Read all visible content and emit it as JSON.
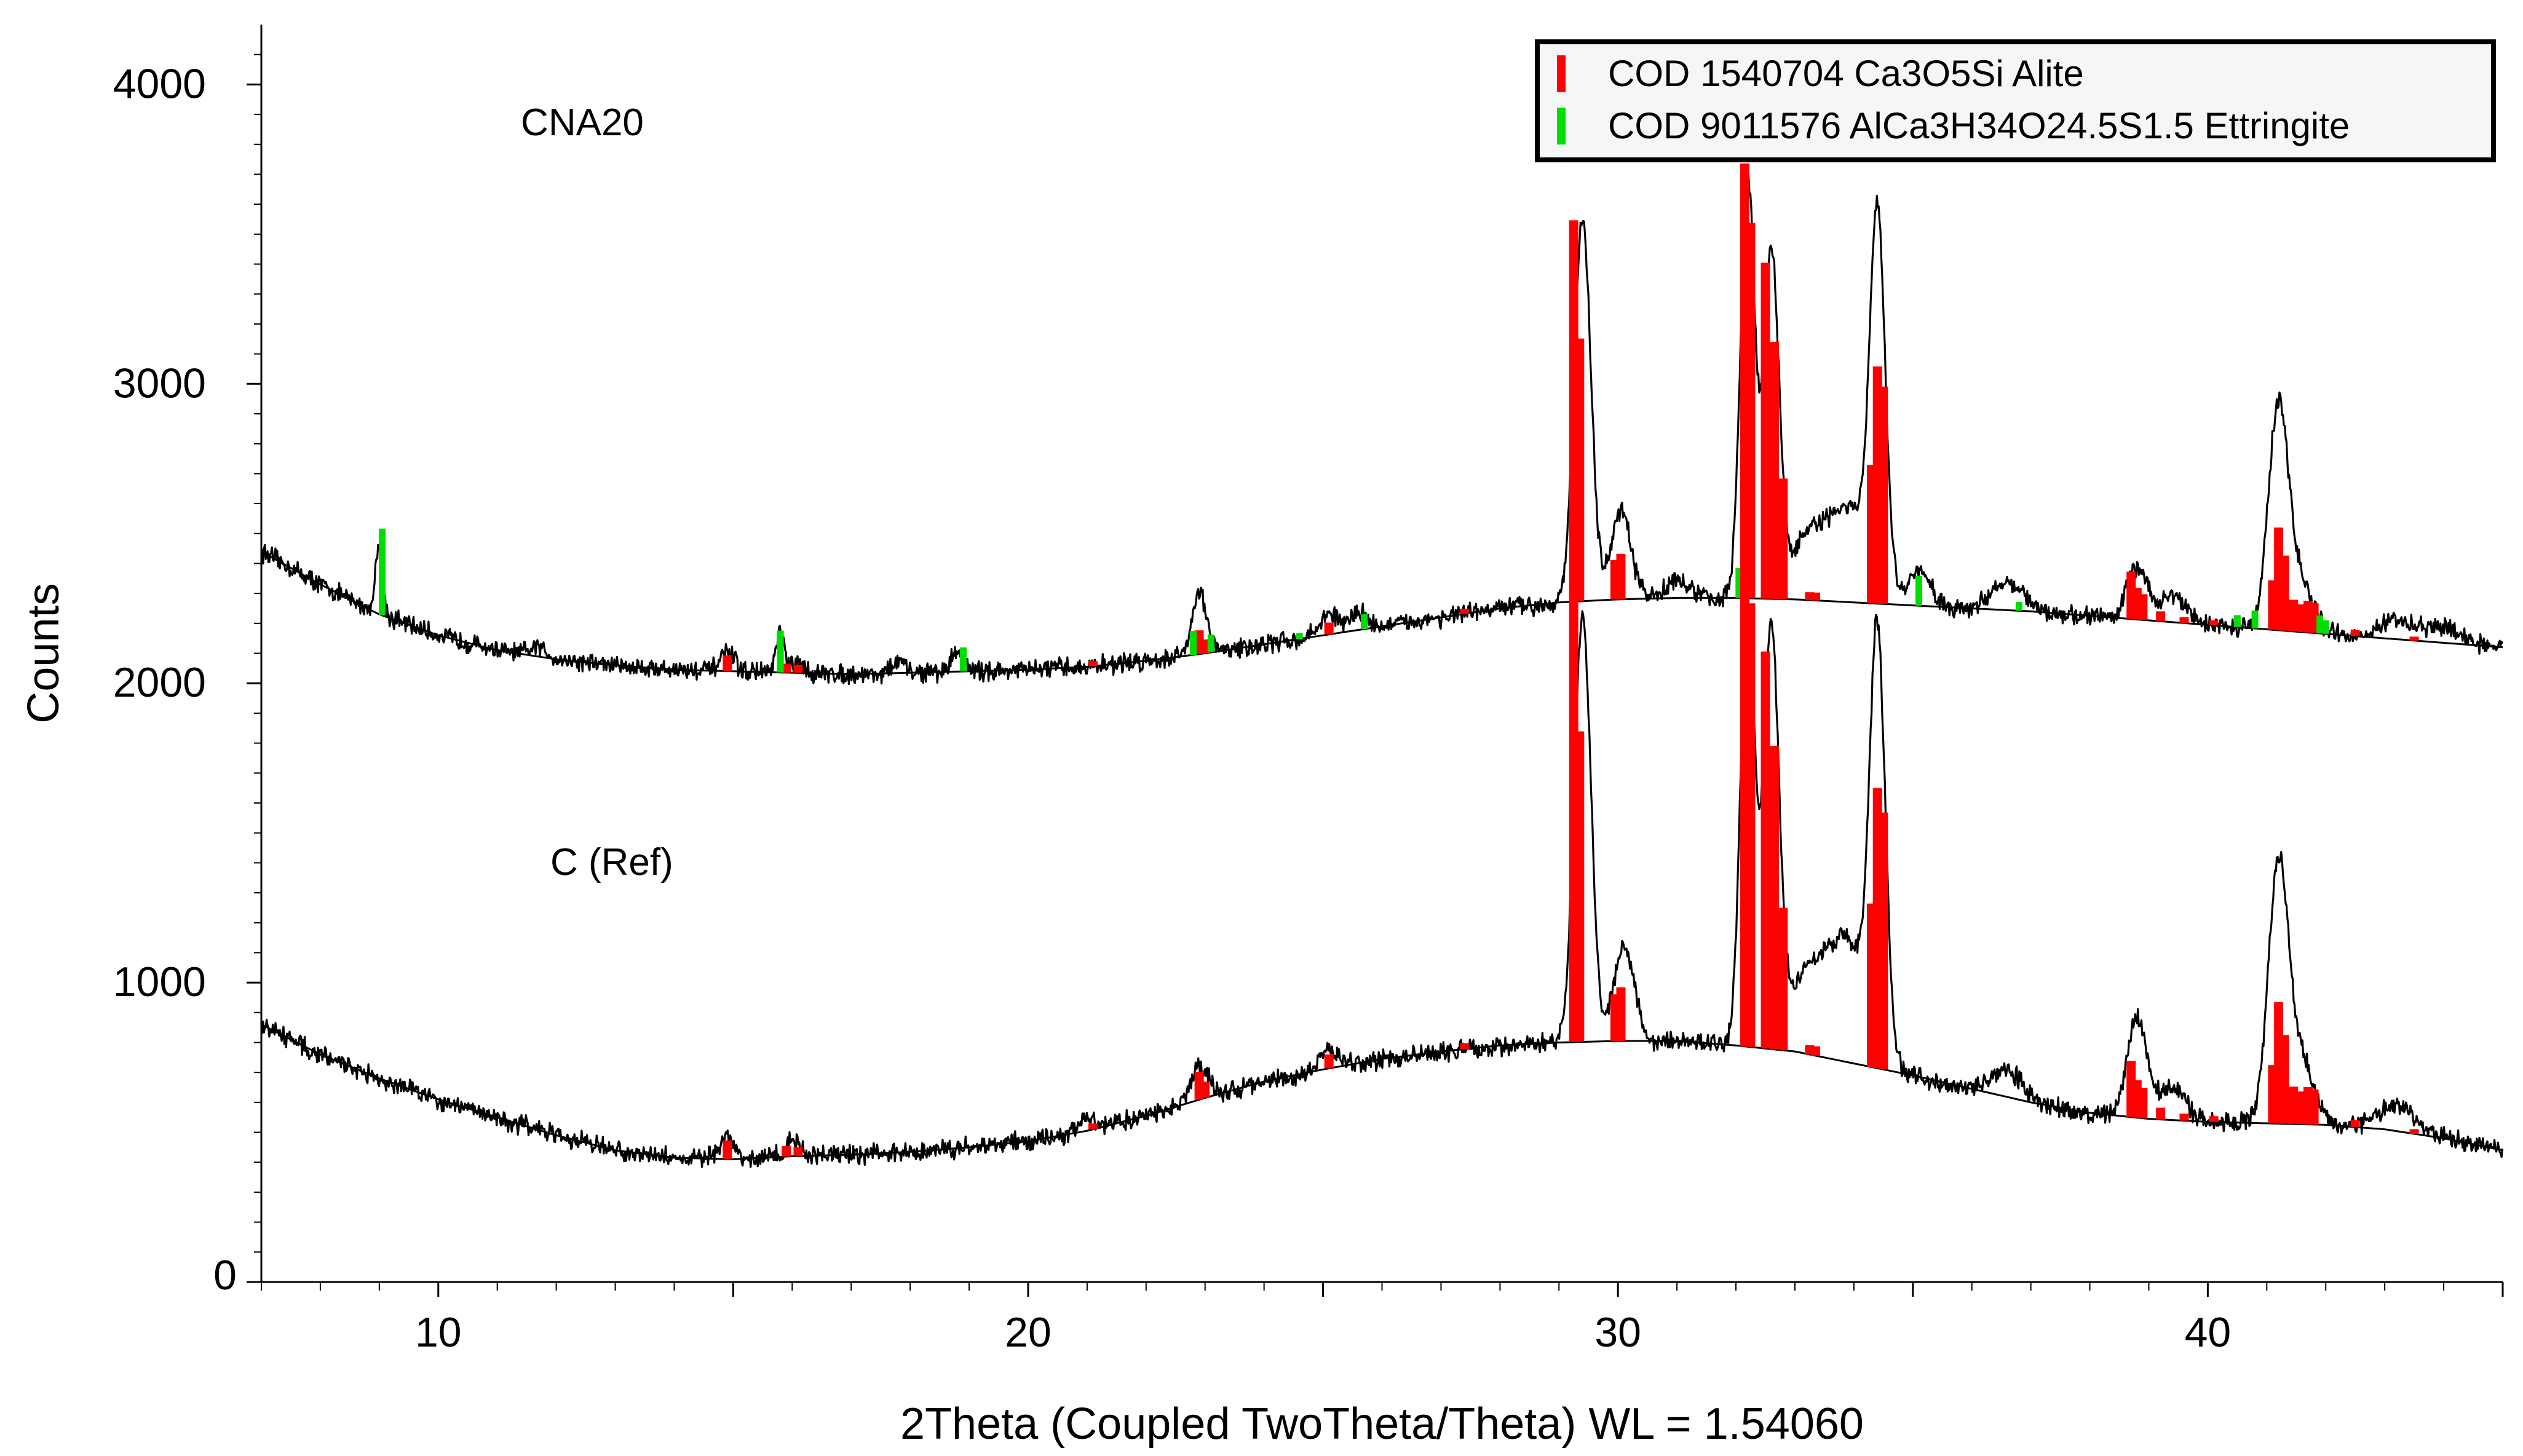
{
  "chart_data": {
    "type": "line",
    "xlabel": "2Theta (Coupled TwoTheta/Theta) WL = 1.54060",
    "ylabel": "Counts",
    "xlim": [
      7,
      45
    ],
    "ylim": [
      0,
      4200
    ],
    "x_ticks": [
      10,
      20,
      30,
      40
    ],
    "y_ticks": [
      {
        "value": 0,
        "label": "0"
      },
      {
        "value": 1000,
        "label": "1000"
      },
      {
        "value": 2000,
        "label": "2000"
      },
      {
        "value": 3000,
        "label": "3000"
      },
      {
        "value": 4000,
        "label": "4000"
      }
    ],
    "grid": false,
    "legend_position": "top-right",
    "legend": [
      {
        "label": "COD 1540704 Ca3O5Si Alite",
        "color": "#ff0000"
      },
      {
        "label": "COD 9011576 AlCa3H34O24.5S1.5 Ettringite",
        "color": "#00dd00"
      }
    ],
    "series": [
      {
        "name": "CNA20",
        "label_at": {
          "x": 11.4,
          "y": 3830
        },
        "offset": 1430,
        "background": [
          [
            7,
            2440
          ],
          [
            8,
            2330
          ],
          [
            9,
            2230
          ],
          [
            10,
            2160
          ],
          [
            11,
            2110
          ],
          [
            12,
            2080
          ],
          [
            13,
            2060
          ],
          [
            14,
            2045
          ],
          [
            15,
            2040
          ],
          [
            16,
            2035
          ],
          [
            17,
            2030
          ],
          [
            18,
            2035
          ],
          [
            19,
            2040
          ],
          [
            20,
            2045
          ],
          [
            21,
            2055
          ],
          [
            22,
            2075
          ],
          [
            23,
            2100
          ],
          [
            24,
            2130
          ],
          [
            25,
            2160
          ],
          [
            26,
            2190
          ],
          [
            27,
            2220
          ],
          [
            28,
            2250
          ],
          [
            29,
            2270
          ],
          [
            30,
            2280
          ],
          [
            31,
            2285
          ],
          [
            32,
            2285
          ],
          [
            33,
            2280
          ],
          [
            34,
            2270
          ],
          [
            35,
            2260
          ],
          [
            36,
            2250
          ],
          [
            37,
            2240
          ],
          [
            38,
            2225
          ],
          [
            39,
            2210
          ],
          [
            40,
            2195
          ],
          [
            41,
            2180
          ],
          [
            42,
            2165
          ],
          [
            43,
            2150
          ],
          [
            44,
            2135
          ],
          [
            45,
            2120
          ]
        ],
        "peaks": [
          [
            9.0,
            250,
            0.06
          ],
          [
            11.7,
            30,
            0.15
          ],
          [
            14.9,
            60,
            0.12
          ],
          [
            15.8,
            130,
            0.07
          ],
          [
            16.1,
            30,
            0.1
          ],
          [
            17.8,
            40,
            0.1
          ],
          [
            18.8,
            70,
            0.1
          ],
          [
            22.9,
            210,
            0.12
          ],
          [
            25.1,
            70,
            0.15
          ],
          [
            25.6,
            60,
            0.15
          ],
          [
            29.4,
            1280,
            0.14
          ],
          [
            30.05,
            290,
            0.17
          ],
          [
            31.0,
            60,
            0.2
          ],
          [
            32.2,
            1400,
            0.12
          ],
          [
            32.6,
            1150,
            0.13
          ],
          [
            33.2,
            190,
            0.28
          ],
          [
            33.9,
            310,
            0.35
          ],
          [
            34.4,
            1220,
            0.13
          ],
          [
            35.1,
            110,
            0.2
          ],
          [
            36.6,
            100,
            0.25
          ],
          [
            38.8,
            170,
            0.17
          ],
          [
            39.4,
            90,
            0.22
          ],
          [
            41.2,
            750,
            0.17
          ],
          [
            41.6,
            150,
            0.2
          ],
          [
            43.2,
            60,
            0.3
          ],
          [
            44.0,
            50,
            0.3
          ]
        ]
      },
      {
        "name": "C (Ref)",
        "label_at": {
          "x": 11.9,
          "y": 1360
        },
        "offset": 0,
        "background": [
          [
            7,
            860
          ],
          [
            8,
            760
          ],
          [
            9,
            680
          ],
          [
            10,
            610
          ],
          [
            11,
            550
          ],
          [
            12,
            490
          ],
          [
            13,
            440
          ],
          [
            14,
            415
          ],
          [
            15,
            410
          ],
          [
            16,
            420
          ],
          [
            17,
            425
          ],
          [
            18,
            435
          ],
          [
            19,
            450
          ],
          [
            20,
            470
          ],
          [
            21,
            505
          ],
          [
            22,
            555
          ],
          [
            23,
            615
          ],
          [
            24,
            670
          ],
          [
            25,
            710
          ],
          [
            26,
            745
          ],
          [
            27,
            770
          ],
          [
            28,
            790
          ],
          [
            29,
            800
          ],
          [
            30,
            805
          ],
          [
            31,
            805
          ],
          [
            32,
            790
          ],
          [
            33,
            770
          ],
          [
            34,
            730
          ],
          [
            35,
            690
          ],
          [
            36,
            645
          ],
          [
            37,
            600
          ],
          [
            38,
            565
          ],
          [
            39,
            545
          ],
          [
            40,
            535
          ],
          [
            41,
            530
          ],
          [
            42,
            525
          ],
          [
            43,
            510
          ],
          [
            44,
            480
          ],
          [
            45,
            440
          ]
        ],
        "peaks": [
          [
            14.9,
            70,
            0.12
          ],
          [
            16.0,
            50,
            0.12
          ],
          [
            21.0,
            40,
            0.15
          ],
          [
            22.9,
            110,
            0.15
          ],
          [
            25.1,
            60,
            0.15
          ],
          [
            29.4,
            1420,
            0.14
          ],
          [
            30.1,
            330,
            0.17
          ],
          [
            32.2,
            1480,
            0.12
          ],
          [
            32.6,
            1380,
            0.13
          ],
          [
            33.2,
            250,
            0.3
          ],
          [
            33.9,
            400,
            0.35
          ],
          [
            34.4,
            1350,
            0.13
          ],
          [
            36.6,
            90,
            0.25
          ],
          [
            38.8,
            330,
            0.17
          ],
          [
            39.4,
            110,
            0.22
          ],
          [
            41.2,
            870,
            0.17
          ],
          [
            41.6,
            200,
            0.2
          ],
          [
            43.2,
            90,
            0.3
          ]
        ]
      }
    ],
    "reference_sticks": {
      "alite": [
        [
          14.9,
          80
        ],
        [
          15.9,
          45
        ],
        [
          16.1,
          40
        ],
        [
          21.1,
          25
        ],
        [
          22.9,
          120
        ],
        [
          23.0,
          70
        ],
        [
          25.1,
          60
        ],
        [
          27.4,
          25
        ],
        [
          29.25,
          1930
        ],
        [
          29.35,
          1330
        ],
        [
          29.95,
          200
        ],
        [
          30.05,
          230
        ],
        [
          32.15,
          2200
        ],
        [
          32.25,
          1900
        ],
        [
          32.5,
          1700
        ],
        [
          32.65,
          1300
        ],
        [
          32.8,
          610
        ],
        [
          33.25,
          40
        ],
        [
          33.35,
          40
        ],
        [
          34.3,
          700
        ],
        [
          34.4,
          1200
        ],
        [
          34.5,
          1100
        ],
        [
          38.7,
          240
        ],
        [
          38.8,
          160
        ],
        [
          38.9,
          130
        ],
        [
          39.2,
          50
        ],
        [
          39.6,
          30
        ],
        [
          40.1,
          25
        ],
        [
          41.1,
          250
        ],
        [
          41.2,
          520
        ],
        [
          41.3,
          380
        ],
        [
          41.45,
          160
        ],
        [
          41.6,
          140
        ],
        [
          41.7,
          160
        ],
        [
          41.8,
          150
        ],
        [
          42.5,
          30
        ],
        [
          43.5,
          20
        ]
      ],
      "ettringite": [
        [
          9.05,
          290
        ],
        [
          15.8,
          140
        ],
        [
          18.9,
          80
        ],
        [
          22.8,
          80
        ],
        [
          23.1,
          60
        ],
        [
          24.6,
          20
        ],
        [
          25.7,
          50
        ],
        [
          32.05,
          100
        ],
        [
          35.1,
          100
        ],
        [
          36.8,
          30
        ],
        [
          40.5,
          40
        ],
        [
          40.8,
          60
        ],
        [
          41.9,
          60
        ],
        [
          42.0,
          45
        ]
      ]
    }
  }
}
